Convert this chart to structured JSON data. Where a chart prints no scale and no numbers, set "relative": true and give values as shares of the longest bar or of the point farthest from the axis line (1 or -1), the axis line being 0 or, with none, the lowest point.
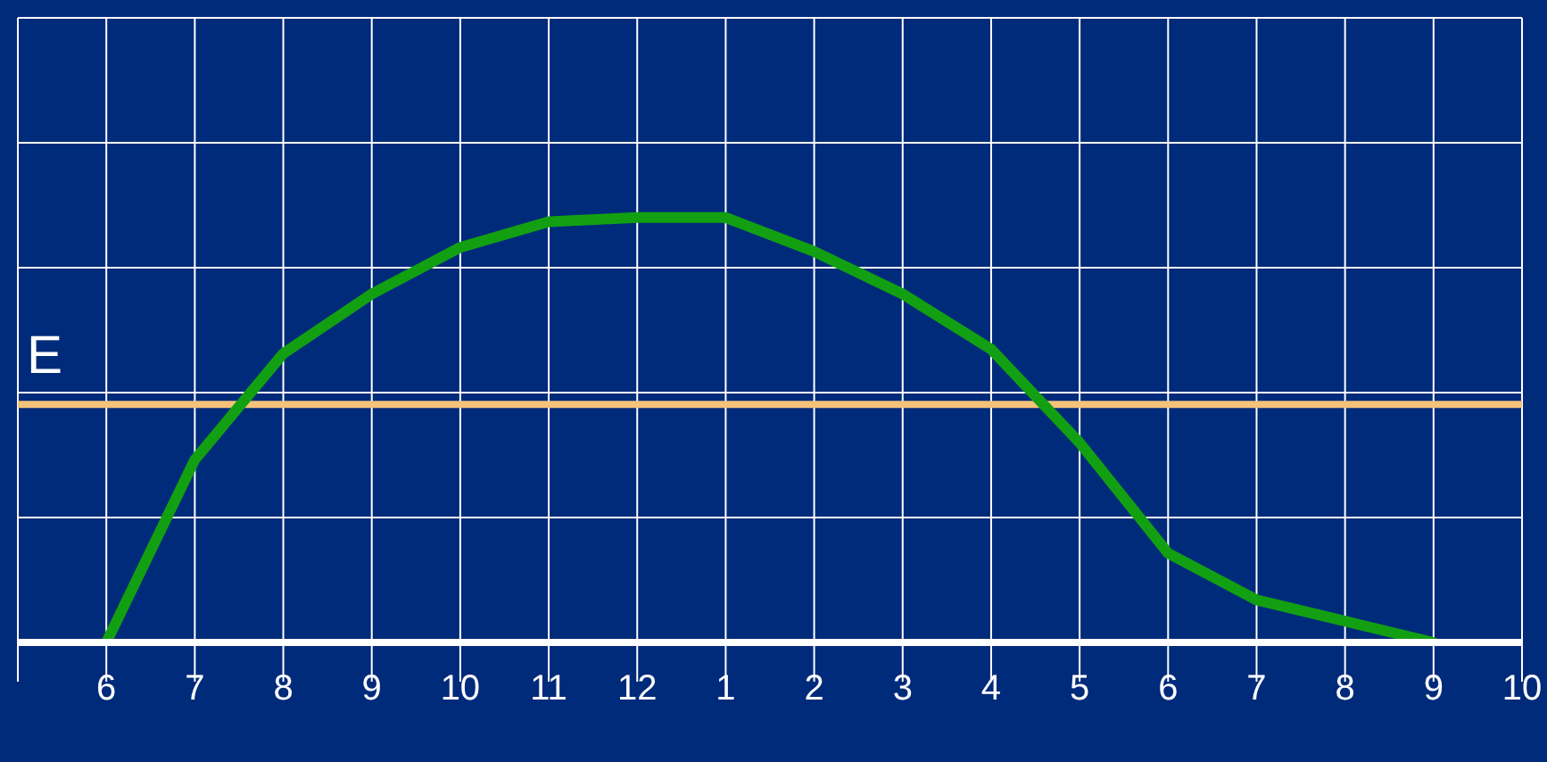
{
  "chart_data": {
    "type": "line",
    "relative": true,
    "categories": [
      null,
      "6",
      "7",
      "8",
      "9",
      "10",
      "11",
      "12",
      "1",
      "2",
      "3",
      "4",
      "5",
      "6",
      "7",
      "8",
      "9",
      "10"
    ],
    "series": [
      {
        "color": "#12a012",
        "values": [
          null,
          0,
          0.43,
          0.68,
          0.82,
          0.93,
          0.99,
          1,
          1,
          0.92,
          0.82,
          0.69,
          0.47,
          0.21,
          0.1,
          0.05,
          0,
          null
        ]
      }
    ],
    "ref_lines": [
      {
        "axis": "y",
        "value": 0.56,
        "label": "E",
        "color": "#f5c27a"
      }
    ],
    "grid": true,
    "marker": "none",
    "line_style": "solid"
  }
}
